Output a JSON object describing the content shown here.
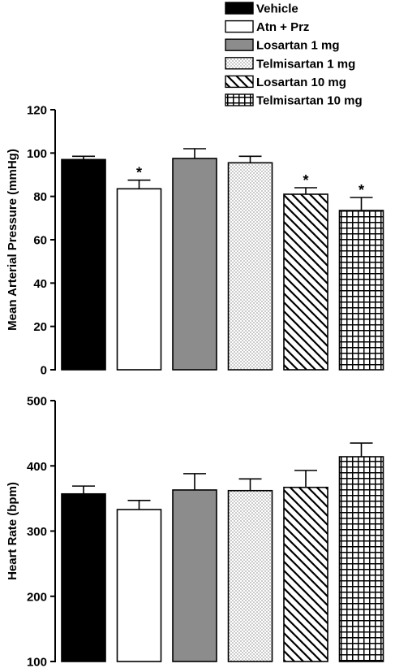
{
  "legend": {
    "items": [
      {
        "label": "Vehicle",
        "pattern": "solid-black"
      },
      {
        "label": "Atn + Prz",
        "pattern": "white"
      },
      {
        "label": "Losartan 1 mg",
        "pattern": "solid-gray"
      },
      {
        "label": "Telmisartan 1 mg",
        "pattern": "dots"
      },
      {
        "label": "Losartan 10 mg",
        "pattern": "diagonal-hatch"
      },
      {
        "label": "Telmisartan 10 mg",
        "pattern": "grid"
      }
    ]
  },
  "colors": {
    "black": "#000000",
    "gray": "#8c8c8c",
    "white": "#ffffff"
  },
  "chart_data": [
    {
      "type": "bar",
      "ylabel": "Mean Arterial Pressure (mmHg)",
      "ylim": [
        0,
        120
      ],
      "yticks": [
        0,
        20,
        40,
        60,
        80,
        100,
        120
      ],
      "categories": [
        "Vehicle",
        "Atn + Prz",
        "Losartan 1 mg",
        "Telmisartan 1 mg",
        "Losartan 10 mg",
        "Telmisartan 10 mg"
      ],
      "values": [
        97,
        83.5,
        97.5,
        95.5,
        81,
        73.5
      ],
      "errors": [
        1.5,
        4,
        4.5,
        3,
        3,
        6
      ],
      "significance": [
        "",
        "*",
        "",
        "",
        "*",
        "*"
      ]
    },
    {
      "type": "bar",
      "ylabel": "Heart Rate (bpm)",
      "ylim": [
        100,
        500
      ],
      "yticks": [
        100,
        200,
        300,
        400,
        500
      ],
      "categories": [
        "Vehicle",
        "Atn + Prz",
        "Losartan 1 mg",
        "Telmisartan 1 mg",
        "Losartan 10 mg",
        "Telmisartan 10 mg"
      ],
      "values": [
        357,
        333,
        363,
        362,
        367,
        414
      ],
      "errors": [
        12,
        14,
        25,
        18,
        26,
        21
      ],
      "significance": [
        "",
        "",
        "",
        "",
        "",
        ""
      ]
    }
  ]
}
